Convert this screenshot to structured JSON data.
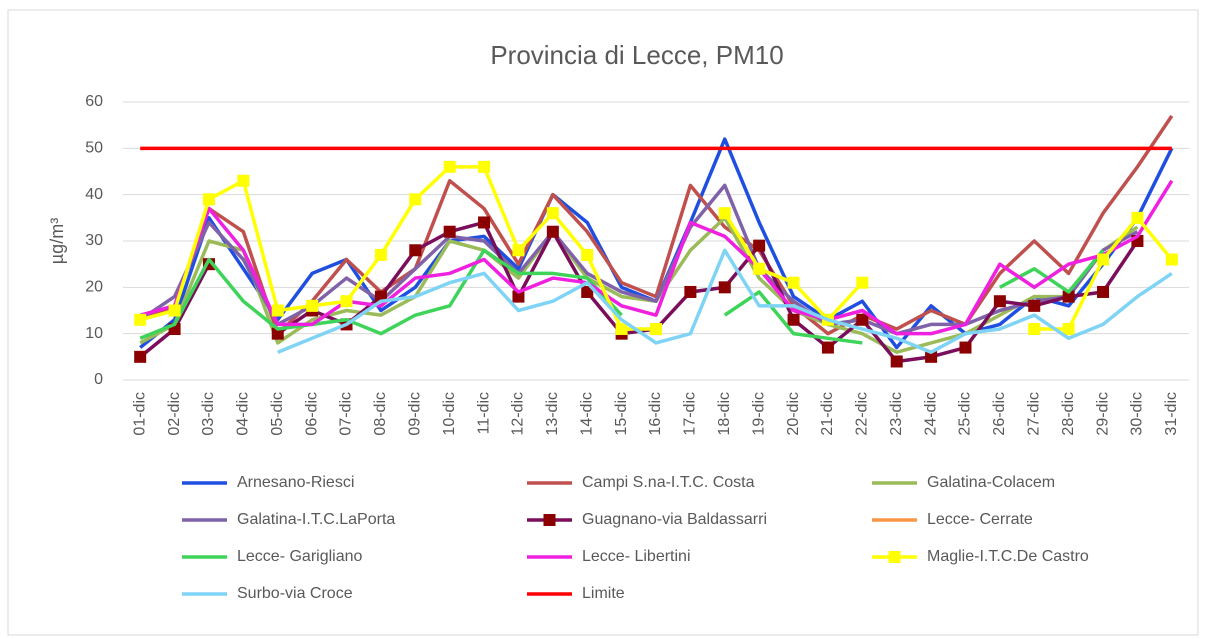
{
  "chart_data": {
    "type": "line",
    "title": "Provincia di Lecce, PM10",
    "y_label": "µg/m³",
    "categories": [
      "01-dic",
      "02-dic",
      "03-dic",
      "04-dic",
      "05-dic",
      "06-dic",
      "07-dic",
      "08-dic",
      "09-dic",
      "10-dic",
      "11-dic",
      "12-dic",
      "13-dic",
      "14-dic",
      "15-dic",
      "16-dic",
      "17-dic",
      "18-dic",
      "19-dic",
      "20-dic",
      "21-dic",
      "22-dic",
      "23-dic",
      "24-dic",
      "25-dic",
      "26-dic",
      "27-dic",
      "28-dic",
      "29-dic",
      "30-dic",
      "31-dic"
    ],
    "ylim": [
      0,
      60
    ],
    "yticks": [
      0,
      10,
      20,
      30,
      40,
      50,
      60
    ],
    "grid": true,
    "series": [
      {
        "name": "Arnesano-Riesci",
        "color": "#1f4fe0",
        "values": [
          7,
          13,
          35,
          24,
          13,
          23,
          26,
          15,
          20,
          30,
          31,
          24,
          40,
          34,
          20,
          17,
          34,
          52,
          34,
          18,
          13,
          17,
          7,
          16,
          10,
          12,
          18,
          16,
          25,
          35,
          50
        ]
      },
      {
        "name": "Campi S.na-I.T.C. Costa",
        "color": "#c0504d",
        "values": [
          13,
          16,
          37,
          32,
          10,
          17,
          26,
          19,
          24,
          43,
          37,
          25,
          40,
          32,
          21,
          18,
          42,
          33,
          28,
          16,
          10,
          14,
          11,
          15,
          12,
          23,
          30,
          23,
          36,
          46,
          57
        ]
      },
      {
        "name": "Galatina-Colacem",
        "color": "#9bbb59",
        "values": [
          8,
          12,
          30,
          28,
          8,
          13,
          15,
          14,
          18,
          30,
          28,
          22,
          32,
          22,
          18,
          17,
          28,
          35,
          22,
          15,
          12,
          10,
          6,
          8,
          10,
          14,
          18,
          18,
          28,
          33,
          null
        ]
      },
      {
        "name": "Galatina-I.T.C.LaPorta",
        "color": "#7f62a8",
        "values": [
          13,
          18,
          34,
          26,
          12,
          16,
          22,
          17,
          24,
          31,
          30,
          23,
          32,
          23,
          19,
          17,
          33,
          42,
          24,
          17,
          12,
          13,
          10,
          12,
          12,
          15,
          17,
          18,
          28,
          32,
          null
        ]
      },
      {
        "name": "Guagnano-via Baldassarri",
        "color": "#7a0e5a",
        "marker_color": "#8b0000",
        "marker": "square",
        "values": [
          5,
          11,
          25,
          null,
          10,
          15,
          12,
          18,
          28,
          32,
          34,
          18,
          32,
          19,
          10,
          11,
          19,
          20,
          29,
          13,
          7,
          13,
          4,
          5,
          7,
          17,
          16,
          18,
          19,
          30,
          null
        ]
      },
      {
        "name": "Lecce- Cerrate",
        "color": "#f79646",
        "values": [
          null,
          null,
          null,
          null,
          null,
          null,
          null,
          null,
          null,
          null,
          null,
          null,
          null,
          null,
          null,
          null,
          null,
          null,
          null,
          null,
          null,
          null,
          null,
          null,
          null,
          null,
          null,
          null,
          null,
          null,
          null
        ]
      },
      {
        "name": "Lecce- Garigliano",
        "color": "#3ed45a",
        "values": [
          9,
          12,
          26,
          17,
          11,
          12,
          13,
          10,
          14,
          16,
          28,
          23,
          23,
          22,
          14,
          null,
          null,
          14,
          19,
          10,
          9,
          8,
          null,
          null,
          null,
          20,
          24,
          19,
          28,
          null,
          null
        ]
      },
      {
        "name": "Lecce- Libertini",
        "color": "#f020e0",
        "values": [
          14,
          16,
          37,
          28,
          12,
          12,
          17,
          16,
          22,
          23,
          26,
          19,
          22,
          21,
          16,
          14,
          34,
          31,
          24,
          15,
          13,
          15,
          10,
          10,
          12,
          25,
          20,
          25,
          27,
          31,
          43
        ]
      },
      {
        "name": "Maglie-I.T.C.De Castro",
        "color": "#ffff00",
        "marker_color": "#ffff00",
        "marker": "square",
        "values": [
          13,
          15,
          39,
          43,
          15,
          16,
          17,
          27,
          39,
          46,
          46,
          28,
          36,
          27,
          11,
          11,
          null,
          36,
          24,
          21,
          13,
          21,
          null,
          null,
          null,
          null,
          11,
          11,
          26,
          35,
          26
        ]
      },
      {
        "name": "Surbo-via Croce",
        "color": "#7fd4f5",
        "values": [
          null,
          null,
          null,
          null,
          6,
          9,
          12,
          17,
          18,
          21,
          23,
          15,
          17,
          21,
          13,
          8,
          10,
          28,
          16,
          16,
          13,
          11,
          9,
          6,
          10,
          11,
          14,
          9,
          12,
          18,
          23
        ]
      },
      {
        "name": "Limite",
        "color": "#ff0000",
        "values": [
          50,
          50,
          50,
          50,
          50,
          50,
          50,
          50,
          50,
          50,
          50,
          50,
          50,
          50,
          50,
          50,
          50,
          50,
          50,
          50,
          50,
          50,
          50,
          50,
          50,
          50,
          50,
          50,
          50,
          50,
          50
        ]
      }
    ]
  }
}
